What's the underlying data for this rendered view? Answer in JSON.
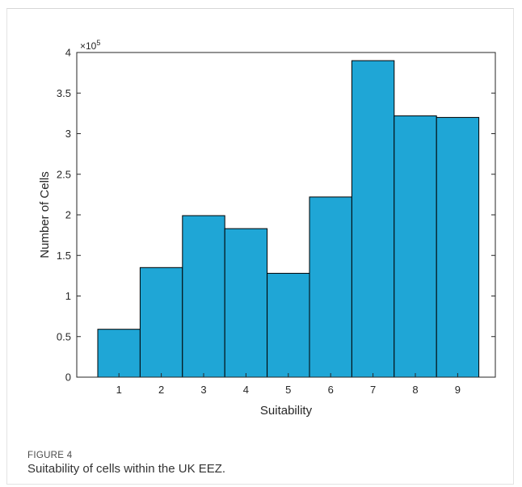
{
  "figure": {
    "label": "FIGURE 4",
    "caption": "Suitability of cells within the UK EEZ."
  },
  "chart_data": {
    "type": "bar",
    "title": "",
    "xlabel": "Suitability",
    "ylabel": "Number of Cells",
    "y_multiplier_label": "×10",
    "y_multiplier_exponent": "5",
    "categories": [
      "1",
      "2",
      "3",
      "4",
      "5",
      "6",
      "7",
      "8",
      "9"
    ],
    "values": [
      0.59,
      1.35,
      1.99,
      1.83,
      1.28,
      2.22,
      3.9,
      3.22,
      3.2
    ],
    "ylim": [
      0,
      4
    ],
    "yticks": [
      "0",
      "0.5",
      "1",
      "1.5",
      "2",
      "2.5",
      "3",
      "3.5",
      "4"
    ],
    "grid": false,
    "colors": {
      "bar_fill": "#1fa6d6",
      "bar_edge": "#000000",
      "axis": "#262626"
    }
  }
}
